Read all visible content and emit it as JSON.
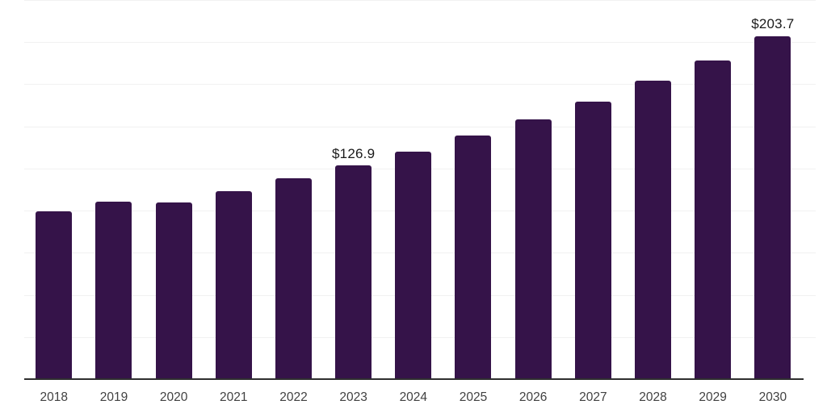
{
  "chart_data": {
    "type": "bar",
    "title": "",
    "xlabel": "",
    "ylabel": "",
    "categories": [
      "2018",
      "2019",
      "2020",
      "2021",
      "2022",
      "2023",
      "2024",
      "2025",
      "2026",
      "2027",
      "2028",
      "2029",
      "2030"
    ],
    "values": [
      99.5,
      105.3,
      104.7,
      111.6,
      119.0,
      126.9,
      134.9,
      144.5,
      154.3,
      164.6,
      176.9,
      189.3,
      203.7
    ],
    "annotations": [
      {
        "category": "2023",
        "label": "$126.9"
      },
      {
        "category": "2030",
        "label": "$203.7"
      }
    ],
    "ylim": [
      0,
      225
    ],
    "gridline_step": 25,
    "grid": true,
    "legend_position": "none",
    "y_axis_tick_labels_visible": false
  },
  "style": {
    "background": "#ffffff",
    "bar_color": "#351349",
    "gridline_color": "#f1f1f1",
    "axis_color": "#2f2f2f",
    "tick_label_color": "#414141",
    "annotation_color": "#1a1a1a"
  }
}
